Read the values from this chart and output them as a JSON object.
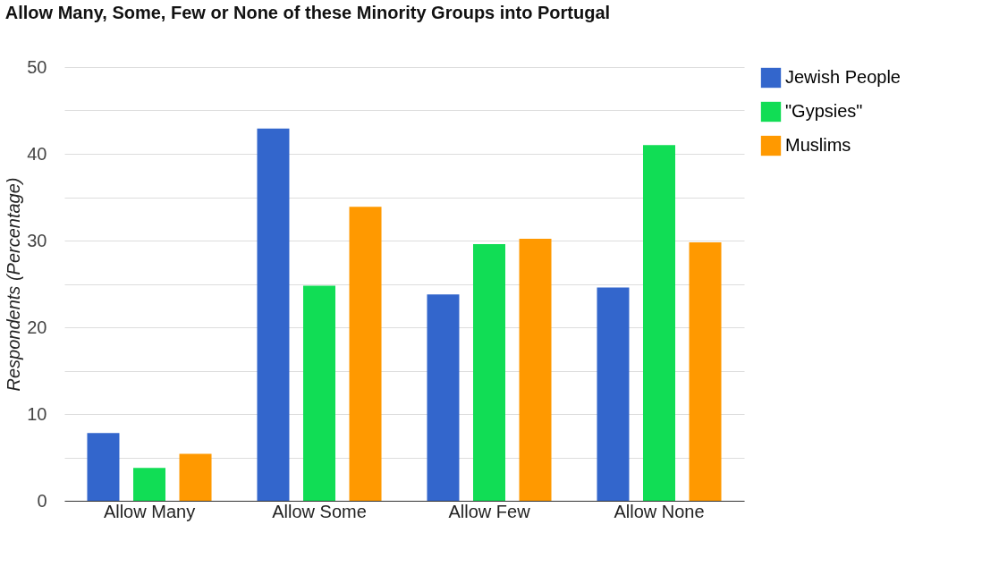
{
  "chart_data": {
    "type": "bar",
    "title": "Allow Many, Some, Few or None of these Minority Groups into Portugal",
    "ylabel": "Respondents (Percentage)",
    "categories": [
      "Allow Many",
      "Allow Some",
      "Allow Few",
      "Allow None"
    ],
    "series": [
      {
        "name": "Jewish People",
        "color": "#3366cc",
        "values": [
          7.8,
          42.9,
          23.8,
          24.6
        ]
      },
      {
        "name": "\"Gypsies\"",
        "color": "#11dd55",
        "values": [
          3.8,
          24.8,
          29.6,
          41.0
        ]
      },
      {
        "name": "Muslims",
        "color": "#ff9900",
        "values": [
          5.4,
          33.9,
          30.2,
          29.8
        ]
      }
    ],
    "ylim": [
      0,
      50
    ],
    "yticks": [
      0,
      {
        "value": 5,
        "label": null
      },
      10,
      {
        "value": 15,
        "label": null
      },
      20,
      {
        "value": 25,
        "label": null
      },
      30,
      {
        "value": 35,
        "label": null
      },
      40,
      {
        "value": 45,
        "label": null
      },
      50
    ],
    "grid": true,
    "legend": "right"
  }
}
